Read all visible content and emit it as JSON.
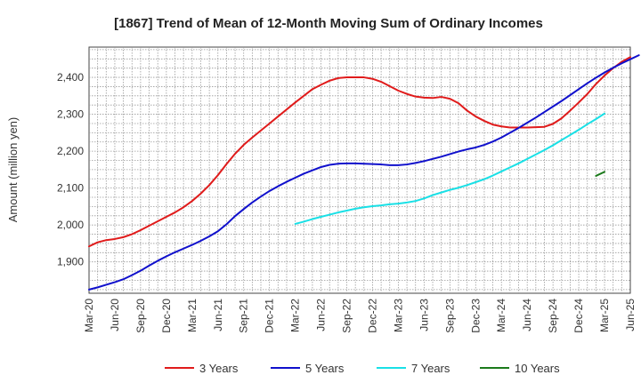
{
  "chart_data": {
    "type": "line",
    "title": "[1867]  Trend of Mean of 12-Month Moving Sum of Ordinary Incomes",
    "xlabel": "",
    "ylabel": "Amount (million yen)",
    "ylim": [
      1815,
      2482
    ],
    "yticks": [
      1900,
      2000,
      2100,
      2200,
      2300,
      2400
    ],
    "ytick_labels": [
      "1,900",
      "2,000",
      "2,100",
      "2,200",
      "2,300",
      "2,400"
    ],
    "xticks": [
      "Mar-20",
      "Jun-20",
      "Sep-20",
      "Dec-20",
      "Mar-21",
      "Jun-21",
      "Sep-21",
      "Dec-21",
      "Mar-22",
      "Jun-22",
      "Sep-22",
      "Dec-22",
      "Mar-23",
      "Jun-23",
      "Sep-23",
      "Dec-23",
      "Mar-24",
      "Jun-24",
      "Sep-24",
      "Dec-24",
      "Mar-25",
      "Jun-25"
    ],
    "grid": true,
    "legend_position": "bottom",
    "series": [
      {
        "name": "3 Years",
        "color": "#e01b1b",
        "start_month": 0,
        "values": [
          1942,
          1953,
          1959,
          1962,
          1967,
          1975,
          1986,
          1998,
          2010,
          2022,
          2034,
          2048,
          2065,
          2085,
          2108,
          2135,
          2165,
          2193,
          2217,
          2237,
          2256,
          2275,
          2294,
          2313,
          2332,
          2350,
          2368,
          2380,
          2391,
          2398,
          2400,
          2400,
          2400,
          2396,
          2388,
          2376,
          2364,
          2355,
          2348,
          2345,
          2344,
          2347,
          2342,
          2330,
          2310,
          2294,
          2282,
          2272,
          2267,
          2264,
          2264,
          2264,
          2265,
          2266,
          2274,
          2289,
          2310,
          2332,
          2355,
          2382,
          2405,
          2425,
          2442,
          2455
        ]
      },
      {
        "name": "5 Years",
        "color": "#1010cc",
        "start_month": 0,
        "values": [
          1825,
          1831,
          1838,
          1845,
          1853,
          1864,
          1876,
          1890,
          1903,
          1915,
          1926,
          1936,
          1946,
          1957,
          1969,
          1983,
          2002,
          2024,
          2043,
          2061,
          2077,
          2092,
          2105,
          2117,
          2128,
          2139,
          2148,
          2157,
          2163,
          2166,
          2167,
          2167,
          2166,
          2165,
          2164,
          2162,
          2162,
          2164,
          2168,
          2173,
          2179,
          2185,
          2192,
          2199,
          2205,
          2210,
          2217,
          2226,
          2237,
          2250,
          2263,
          2277,
          2291,
          2306,
          2321,
          2336,
          2352,
          2368,
          2384,
          2399,
          2413,
          2426,
          2438,
          2449,
          2460
        ]
      },
      {
        "name": "7 Years",
        "color": "#19e0e6",
        "start_month": 24,
        "values": [
          2003,
          2009,
          2016,
          2022,
          2028,
          2034,
          2039,
          2044,
          2048,
          2051,
          2053,
          2056,
          2058,
          2061,
          2065,
          2072,
          2081,
          2088,
          2095,
          2101,
          2108,
          2116,
          2124,
          2134,
          2145,
          2156,
          2167,
          2179,
          2191,
          2203,
          2216,
          2230,
          2244,
          2258,
          2273,
          2287,
          2302
        ]
      },
      {
        "name": "10 Years",
        "color": "#1b7a1b",
        "start_month": 59,
        "values": [
          2133,
          2144
        ]
      }
    ]
  }
}
